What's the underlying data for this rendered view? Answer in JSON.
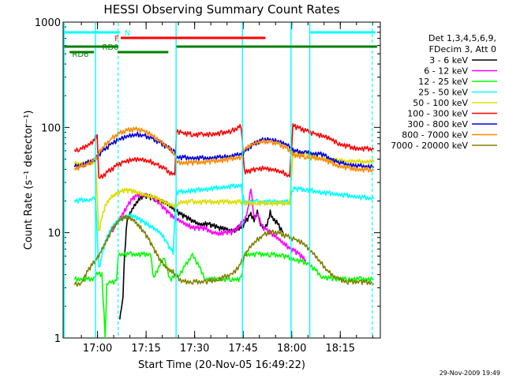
{
  "chart_data": {
    "type": "line",
    "title": "HESSI Observing Summary Count Rates",
    "xlabel": "Start Time (20-Nov-05 16:49:22)",
    "ylabel": "Count Rate (s⁻¹ detector⁻¹)",
    "yscale": "log",
    "ylim": [
      1,
      1000
    ],
    "xlim_minutes": [
      0,
      98
    ],
    "xticks": [
      {
        "min": 10.63,
        "label": "17:00"
      },
      {
        "min": 25.63,
        "label": "17:15"
      },
      {
        "min": 40.63,
        "label": "17:30"
      },
      {
        "min": 55.63,
        "label": "17:45"
      },
      {
        "min": 70.63,
        "label": "18:00"
      },
      {
        "min": 85.63,
        "label": "18:15"
      }
    ],
    "yticks": [
      {
        "value": 1,
        "label": "1"
      },
      {
        "value": 10,
        "label": "10"
      },
      {
        "value": 100,
        "label": "100"
      },
      {
        "value": 1000,
        "label": "1000"
      }
    ],
    "legend": {
      "position": "right",
      "header": [
        "Det 1,3,4,5,6,9,",
        "FDecim 3, Att 0"
      ]
    },
    "series": [
      {
        "name": "3 - 6 keV",
        "color": "#000000",
        "x": [
          17.5,
          18,
          18.5,
          19,
          19.5,
          20,
          21,
          22,
          23,
          24,
          25,
          26,
          27,
          28,
          29,
          30,
          31,
          32,
          33,
          34,
          35,
          36,
          37,
          38,
          39,
          40,
          41,
          42,
          43,
          44,
          45,
          46,
          47,
          48,
          49,
          50,
          51,
          52,
          53,
          54,
          55,
          56,
          57,
          58,
          59,
          60,
          61,
          62,
          63,
          64,
          65,
          66,
          67,
          68
        ],
        "y": [
          1.5,
          1.8,
          2.6,
          6.0,
          11.0,
          13.5,
          16.0,
          18.0,
          20.0,
          21.5,
          22.0,
          22.0,
          21.5,
          21.0,
          20.5,
          20.0,
          19.5,
          19.0,
          18.0,
          17.0,
          16.0,
          15.0,
          14.5,
          14.0,
          13.5,
          13.0,
          12.5,
          12.0,
          12.0,
          12.0,
          12.0,
          11.5,
          11.5,
          11.0,
          11.0,
          11.0,
          10.5,
          10.5,
          10.5,
          11.0,
          11.0,
          12.0,
          13.5,
          15.0,
          13.0,
          16.0,
          12.0,
          11.0,
          12.0,
          15.5,
          13.0,
          12.5,
          11.0,
          10.0
        ]
      },
      {
        "name": "6 - 12 keV",
        "color": "#ff00ff",
        "x": [
          15,
          16,
          17,
          18,
          19,
          20,
          21,
          22,
          23,
          24,
          25,
          26,
          27,
          28,
          29,
          30,
          31,
          32,
          33,
          34,
          35,
          36,
          37,
          38,
          39,
          40,
          41,
          42,
          43,
          44,
          45,
          46,
          47,
          48,
          49,
          50,
          51,
          52,
          53,
          54,
          55,
          56,
          57,
          58,
          59,
          60,
          61,
          62,
          63,
          64,
          65,
          66,
          67,
          68,
          69,
          70,
          71,
          72,
          73,
          74,
          75
        ],
        "y": [
          10.0,
          11.5,
          13.0,
          14.5,
          16.0,
          18.0,
          20.0,
          21.5,
          22.5,
          23.0,
          23.0,
          22.5,
          22.0,
          21.0,
          20.0,
          18.5,
          17.0,
          16.0,
          15.0,
          14.0,
          13.5,
          13.0,
          12.5,
          12.0,
          11.5,
          11.0,
          11.0,
          11.0,
          11.0,
          11.0,
          10.5,
          10.0,
          10.0,
          9.8,
          9.8,
          10.0,
          10.0,
          10.0,
          10.5,
          11.0,
          12.5,
          13.0,
          16.0,
          27.0,
          13.5,
          15.0,
          12.0,
          11.0,
          10.5,
          10.0,
          9.5,
          9.0,
          8.5,
          8.0,
          7.5,
          7.0,
          6.8,
          6.5,
          6.2,
          5.8,
          5.5
        ]
      },
      {
        "name": "12 - 25 keV",
        "color": "#00ff00",
        "x": [
          3.5,
          9.5,
          10,
          12,
          13,
          13.5,
          14,
          16.5,
          17,
          21,
          27,
          28,
          31,
          33,
          36,
          40,
          44,
          48,
          52,
          55,
          56,
          60,
          64,
          68,
          72,
          76,
          80,
          84,
          88,
          92,
          96
        ],
        "y": [
          3.6,
          3.6,
          4.0,
          4.0,
          1.0,
          3.2,
          3.4,
          3.4,
          6.2,
          6.2,
          6.2,
          3.6,
          6.0,
          3.6,
          4.0,
          6.2,
          3.6,
          3.6,
          3.6,
          3.6,
          6.2,
          6.2,
          6.2,
          6.0,
          5.5,
          5.0,
          3.8,
          3.6,
          3.6,
          3.6,
          3.6
        ]
      },
      {
        "name": "25 - 50 keV",
        "color": "#00ffff",
        "x": [
          3.5,
          8,
          9.5,
          10,
          11,
          12,
          13,
          14,
          15,
          16,
          17,
          18,
          19,
          20,
          21,
          22,
          23,
          24,
          25,
          26,
          27,
          28,
          29,
          30,
          31,
          32,
          33,
          34,
          35,
          40,
          45,
          50,
          55,
          56,
          60,
          65,
          70,
          71,
          72,
          75,
          80,
          85,
          90,
          96
        ],
        "y": [
          20.0,
          20.5,
          21.0,
          22.0,
          4.5,
          6.0,
          8.0,
          9.5,
          11.0,
          12.0,
          13.0,
          13.5,
          14.0,
          14.5,
          14.5,
          14.0,
          13.5,
          13.0,
          12.5,
          12.0,
          11.5,
          11.0,
          10.5,
          10.0,
          9.0,
          8.0,
          7.0,
          6.5,
          24.0,
          25.0,
          26.0,
          27.0,
          28.0,
          19.5,
          19.5,
          19.5,
          19.5,
          26.0,
          26.0,
          25.5,
          24.0,
          23.0,
          22.0,
          21.0
        ]
      },
      {
        "name": "50 - 100 keV",
        "color": "#dddd00",
        "x": [
          3.5,
          9.5,
          10,
          11,
          12,
          13,
          14,
          15,
          16,
          17,
          18,
          19,
          20,
          21,
          22,
          23,
          24,
          25,
          26,
          27,
          28,
          29,
          30,
          31,
          32,
          33,
          34,
          35,
          36,
          40,
          45,
          50,
          55,
          56,
          60,
          65,
          70,
          71,
          72,
          75,
          78,
          80,
          85,
          90,
          96
        ],
        "y": [
          45.0,
          46.0,
          47.0,
          10.0,
          14.0,
          18.0,
          20.0,
          22.0,
          23.0,
          24.0,
          24.5,
          25.0,
          25.0,
          25.0,
          24.5,
          24.0,
          23.5,
          23.0,
          22.5,
          22.0,
          21.5,
          21.0,
          20.0,
          19.5,
          19.0,
          18.5,
          18.0,
          18.0,
          19.5,
          19.5,
          19.5,
          19.5,
          19.5,
          19.0,
          19.0,
          19.0,
          19.0,
          57.0,
          56.0,
          55.0,
          52.0,
          50.0,
          48.0,
          47.0,
          47.0
        ]
      },
      {
        "name": "100 - 300 keV",
        "color": "#ff0000",
        "x": [
          3.5,
          5,
          7,
          9,
          10,
          10.5,
          11,
          13,
          15,
          17,
          19,
          21,
          23,
          25,
          27,
          29,
          31,
          33,
          34.5,
          35,
          37,
          40,
          43,
          46,
          49,
          52,
          54,
          55,
          56,
          57,
          60,
          62,
          64,
          66,
          68,
          70,
          71,
          72,
          74,
          76,
          78,
          80,
          82,
          85,
          90,
          96
        ],
        "y": [
          60.0,
          62.0,
          66.0,
          72.0,
          80.0,
          85.0,
          32.0,
          36.0,
          40.0,
          44.0,
          47.0,
          49.0,
          50.0,
          49.0,
          47.0,
          44.0,
          41.0,
          37.0,
          34.0,
          92.0,
          88.0,
          85.0,
          85.0,
          86.0,
          88.0,
          92.0,
          98.0,
          102.0,
          38.0,
          38.0,
          40.0,
          41.0,
          40.0,
          39.0,
          37.0,
          34.0,
          103.0,
          100.0,
          95.0,
          90.0,
          86.0,
          83.0,
          80.0,
          70.0,
          63.0,
          62.0
        ]
      },
      {
        "name": "300 - 800 keV",
        "color": "#0000dd",
        "x": [
          3.5,
          7,
          10,
          11,
          13,
          15,
          17,
          19,
          21,
          23,
          25,
          27,
          29,
          31,
          33,
          34.5,
          35,
          40,
          45,
          50,
          55,
          56,
          58,
          60,
          62,
          64,
          66,
          68,
          70,
          71,
          72,
          75,
          80,
          85,
          90,
          96
        ],
        "y": [
          42.0,
          45.0,
          50.0,
          55.0,
          62.0,
          70.0,
          76.0,
          81.0,
          84.0,
          85.0,
          83.0,
          79.0,
          74.0,
          68.0,
          62.0,
          58.0,
          52.0,
          51.0,
          51.0,
          52.0,
          55.0,
          58.0,
          66.0,
          72.0,
          76.0,
          76.0,
          74.0,
          71.0,
          66.0,
          60.0,
          59.0,
          57.0,
          55.0,
          46.0,
          43.0,
          42.0
        ]
      },
      {
        "name": "800 - 7000 keV",
        "color": "#ff8800",
        "x": [
          3.5,
          7,
          10,
          11,
          13,
          15,
          17,
          19,
          21,
          23,
          25,
          27,
          29,
          31,
          33,
          34.5,
          35,
          40,
          45,
          50,
          55,
          56,
          58,
          60,
          62,
          64,
          66,
          68,
          70,
          71,
          72,
          75,
          80,
          85,
          90,
          96
        ],
        "y": [
          40.0,
          44.0,
          49.0,
          58.0,
          68.0,
          78.0,
          86.0,
          92.0,
          95.0,
          95.0,
          92.0,
          86.0,
          78.0,
          70.0,
          62.0,
          55.0,
          46.0,
          46.0,
          47.0,
          49.0,
          52.0,
          62.0,
          68.0,
          72.0,
          73.0,
          72.0,
          70.0,
          66.0,
          60.0,
          55.0,
          54.0,
          52.0,
          50.0,
          43.0,
          40.0,
          39.0
        ]
      },
      {
        "name": "7000 - 20000 keV",
        "color": "#808000",
        "x": [
          3.5,
          6,
          7,
          8,
          9,
          10,
          11,
          12,
          13,
          14,
          15,
          16,
          17,
          18,
          19,
          20,
          21,
          22,
          23,
          24,
          25,
          26,
          27,
          28,
          29,
          30,
          31,
          32,
          33,
          34,
          35,
          37,
          40,
          44,
          48,
          52,
          54,
          56,
          58,
          60,
          62,
          64,
          66,
          68,
          70,
          72,
          74,
          76,
          78,
          80,
          82,
          85,
          88,
          92,
          96
        ],
        "y": [
          3.2,
          3.3,
          4.0,
          4.5,
          5.0,
          5.5,
          6.0,
          7.0,
          8.0,
          9.0,
          10.5,
          11.5,
          12.5,
          13.5,
          14.0,
          14.0,
          13.5,
          13.0,
          12.0,
          11.0,
          10.0,
          9.0,
          8.0,
          7.0,
          6.2,
          5.5,
          5.0,
          4.6,
          4.4,
          4.2,
          3.8,
          3.4,
          3.4,
          3.4,
          3.6,
          4.0,
          4.6,
          6.0,
          7.5,
          8.5,
          9.5,
          10.0,
          10.0,
          9.5,
          9.0,
          8.5,
          8.0,
          7.0,
          6.0,
          5.0,
          4.2,
          3.6,
          3.4,
          3.4,
          3.3
        ]
      }
    ],
    "state_bars": [
      {
        "label": "N",
        "color": "#00ffff",
        "segments": [
          [
            0.3,
            17.5
          ],
          [
            76.4,
            96.5
          ]
        ]
      },
      {
        "label": "F",
        "color": "#ff0000",
        "segments": [
          [
            17.8,
            62.5
          ]
        ]
      },
      {
        "label": "RD0",
        "color": "#008000",
        "segments": [
          [
            0.3,
            9.5
          ],
          [
            9.5,
            16.8
          ],
          [
            35.0,
            55.5
          ],
          [
            55.5,
            70.5
          ],
          [
            70.5,
            97.0
          ]
        ]
      },
      {
        "label": "RD6",
        "color": "#008000",
        "segments": [
          [
            2.0,
            9.5
          ],
          [
            16.8,
            32.5
          ]
        ]
      }
    ],
    "markers": {
      "solid_minutes": [
        0.3,
        10.0,
        34.9,
        55.4,
        70.4,
        76.2
      ],
      "dashed_minutes": [
        17.0,
        95.5
      ]
    }
  },
  "footer": {
    "timestamp": "29-Nov-2009 19:49"
  }
}
